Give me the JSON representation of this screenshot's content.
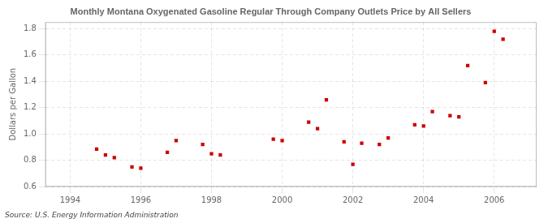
{
  "chart_data": {
    "type": "scatter",
    "title": "Monthly Montana Oxygenated Gasoline Regular Through Company Outlets Price by All Sellers",
    "y_label": "Dollars per Gallon",
    "annotations": [
      "Source: U.S. Energy Information Administration"
    ],
    "series": [
      {
        "color": "#cc0000",
        "marker": "square",
        "x": [
          1994.75,
          1995.0,
          1995.25,
          1995.75,
          1996.0,
          1996.75,
          1997.0,
          1997.75,
          1998.0,
          1998.25,
          1999.75,
          2000.0,
          2000.75,
          2001.0,
          2001.25,
          2001.75,
          2002.0,
          2002.25,
          2002.75,
          2003.0,
          2003.75,
          2004.0,
          2004.25,
          2004.75,
          2005.0,
          2005.25,
          2005.75,
          2006.0,
          2006.25
        ],
        "values": [
          0.885,
          0.84,
          0.82,
          0.75,
          0.74,
          0.86,
          0.95,
          0.92,
          0.85,
          0.84,
          0.96,
          0.95,
          1.09,
          1.04,
          1.26,
          0.94,
          0.77,
          0.93,
          0.92,
          0.97,
          1.07,
          1.06,
          1.17,
          1.14,
          1.13,
          1.52,
          1.39,
          1.78,
          1.72
        ]
      }
    ],
    "xlim": [
      1993.3,
      2007.2
    ],
    "xticks": [
      1994,
      1996,
      1998,
      2000,
      2002,
      2004,
      2006
    ],
    "ylim": [
      0.6,
      1.85
    ],
    "yticks": [
      0.6,
      0.8,
      {
        "value": 1.0,
        "label": "1.0"
      },
      1.2,
      1.4,
      1.6,
      1.8
    ],
    "grid": true
  }
}
